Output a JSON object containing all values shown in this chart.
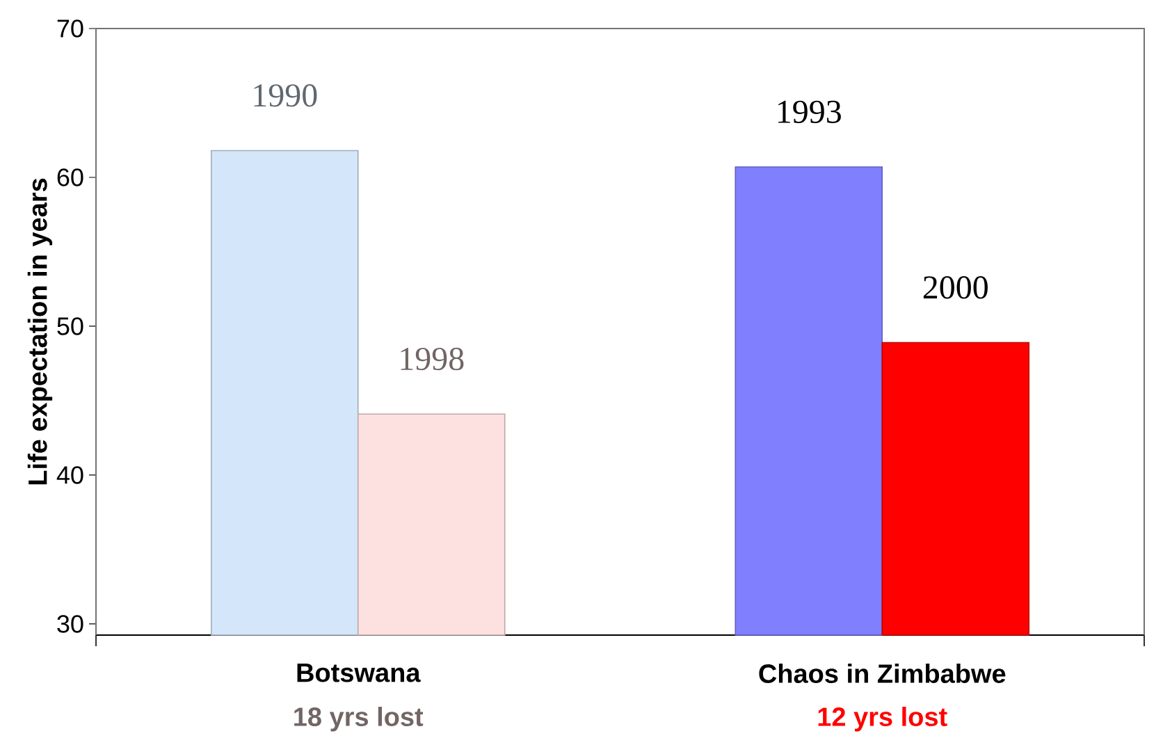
{
  "chart_data": {
    "type": "bar",
    "ylabel": "Life expectation in years",
    "categories": [
      "Botswana",
      "Chaos in Zimbabwe"
    ],
    "series": [
      {
        "name": "1990",
        "color": "#d4e6f9",
        "values": [
          61.8,
          null
        ]
      },
      {
        "name": "1998",
        "color": "#fde0e0",
        "values": [
          44.1,
          null
        ]
      },
      {
        "name": "1993",
        "color": "#8080ff",
        "values": [
          null,
          60.7
        ]
      },
      {
        "name": "2000",
        "color": "#ff0000",
        "values": [
          null,
          48.9
        ]
      }
    ],
    "ylim": [
      29.25,
      70
    ],
    "yticks": [
      30,
      40,
      50,
      60,
      70
    ],
    "annotations": [
      "18 yrs lost",
      "12 yrs lost"
    ]
  }
}
